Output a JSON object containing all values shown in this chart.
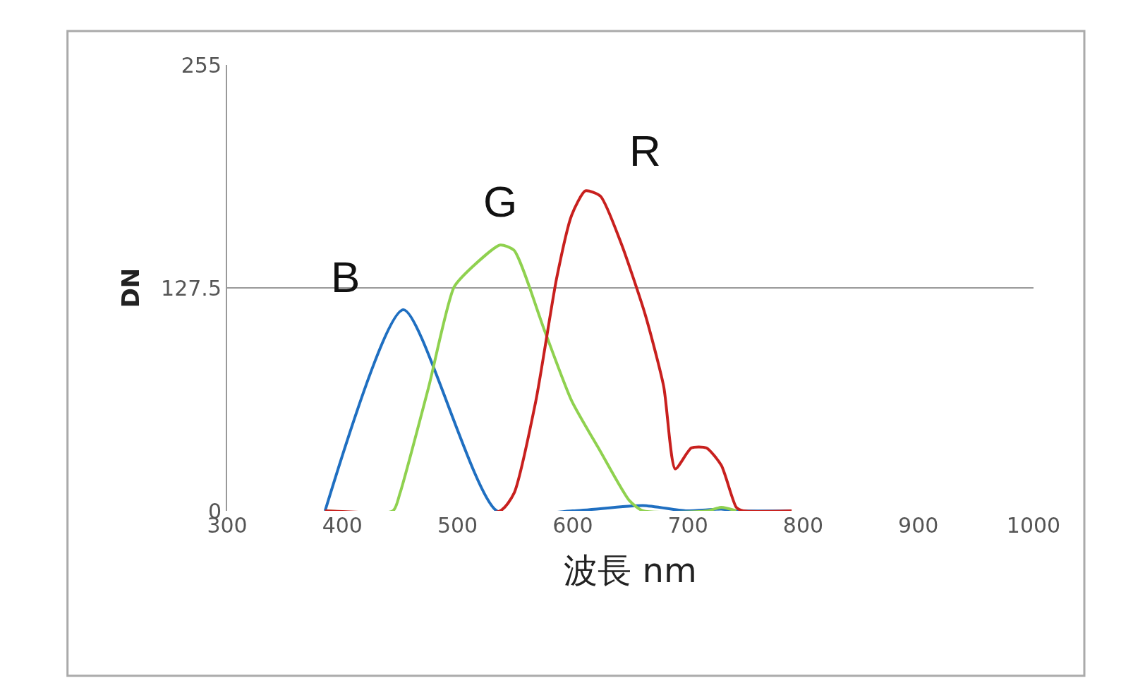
{
  "chart_data": {
    "type": "line",
    "xlabel": "波長 nm",
    "ylabel": "DN",
    "xlim": [
      300,
      1000
    ],
    "xticks": [
      300,
      400,
      500,
      600,
      700,
      800,
      900,
      1000
    ],
    "ylim": [
      0,
      255
    ],
    "yticks": [
      0,
      127.5,
      255
    ],
    "grid": "y",
    "legend": false,
    "marker": "none",
    "line_style": "solid",
    "series": [
      {
        "name": "B",
        "color": "#1f6fc1",
        "x": [
          385,
          453,
          534,
          600,
          661,
          698,
          729,
          742,
          790
        ],
        "values": [
          0,
          115,
          0,
          0,
          3,
          0,
          1,
          0,
          0
        ]
      },
      {
        "name": "G",
        "color": "#8fd14f",
        "x": [
          385,
          444,
          450,
          475,
          497,
          512,
          537,
          549,
          575,
          599,
          624,
          649,
          661,
          717,
          729,
          742
        ],
        "values": [
          0,
          0,
          10,
          71,
          128,
          139,
          152,
          149,
          104,
          63,
          34,
          6,
          0,
          0,
          2,
          0
        ]
      },
      {
        "name": "R",
        "color": "#c8201e",
        "x": [
          385,
          537,
          549,
          568,
          586,
          599,
          611,
          624,
          642,
          663,
          679,
          689,
          703,
          716,
          729,
          742,
          748,
          790
        ],
        "values": [
          0,
          0,
          10,
          63,
          133,
          169,
          183,
          180,
          153,
          112,
          71,
          24,
          36,
          36,
          26,
          2,
          0,
          0
        ]
      }
    ]
  }
}
